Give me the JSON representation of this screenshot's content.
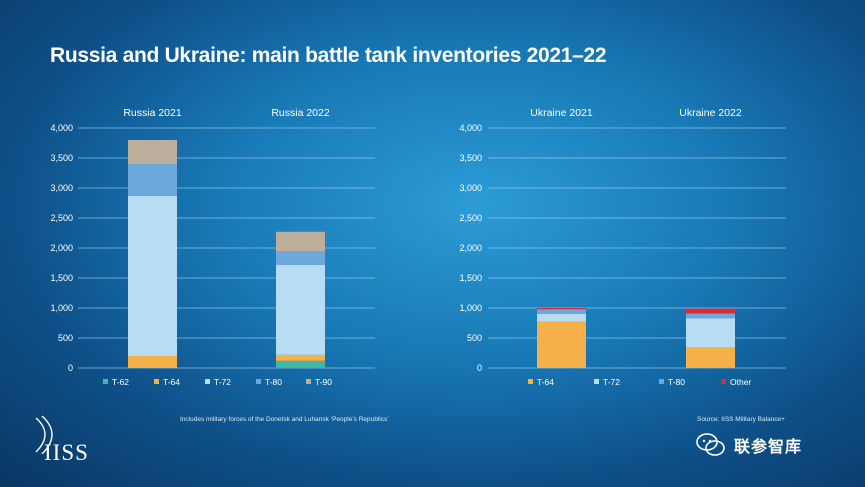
{
  "header": {
    "title": "Russia and Ukraine: main battle tank inventories 2021–22"
  },
  "footer": {
    "note_left": "Includes military forces of the Donetsk and Luhansk ‘People’s Republics’",
    "note_right": "Source: IISS Military Balance+",
    "logo_text": "IISS",
    "watermark_text": "联参智库"
  },
  "colors": {
    "T-62": "#3fb8a5",
    "T-64": "#f5b049",
    "T-72": "#b8dcf4",
    "T-80": "#6ea7db",
    "T-90": "#bdae9c",
    "Other": "#d82c3a",
    "grid": "#9fd0ef"
  },
  "chart_data": [
    {
      "type": "bar",
      "stacked": true,
      "title": "",
      "categories": [
        "Russia 2021",
        "Russia 2022"
      ],
      "series": [
        {
          "name": "T-62",
          "values": [
            0,
            120
          ]
        },
        {
          "name": "T-64",
          "values": [
            200,
            100
          ]
        },
        {
          "name": "T-72",
          "values": [
            2670,
            1500
          ]
        },
        {
          "name": "T-80",
          "values": [
            530,
            230
          ]
        },
        {
          "name": "T-90",
          "values": [
            400,
            320
          ]
        }
      ],
      "yticks": [
        "4,000",
        "3,500",
        "3,000",
        "2,500",
        "2,000",
        "1,500",
        "1,000",
        "500",
        "0"
      ],
      "ylim": [
        0,
        4000
      ],
      "grid": true,
      "legend_position": "bottom"
    },
    {
      "type": "bar",
      "stacked": true,
      "title": "",
      "categories": [
        "Ukraine 2021",
        "Ukraine 2022"
      ],
      "series": [
        {
          "name": "T-64",
          "values": [
            770,
            350
          ]
        },
        {
          "name": "T-72",
          "values": [
            130,
            480
          ]
        },
        {
          "name": "T-80",
          "values": [
            80,
            80
          ]
        },
        {
          "name": "Other",
          "values": [
            20,
            80
          ]
        }
      ],
      "yticks": [
        "4,000",
        "3,500",
        "3,000",
        "2,500",
        "2,000",
        "1,500",
        "1,000",
        "500",
        "0"
      ],
      "ylim": [
        0,
        4000
      ],
      "grid": true,
      "legend_position": "bottom"
    }
  ]
}
